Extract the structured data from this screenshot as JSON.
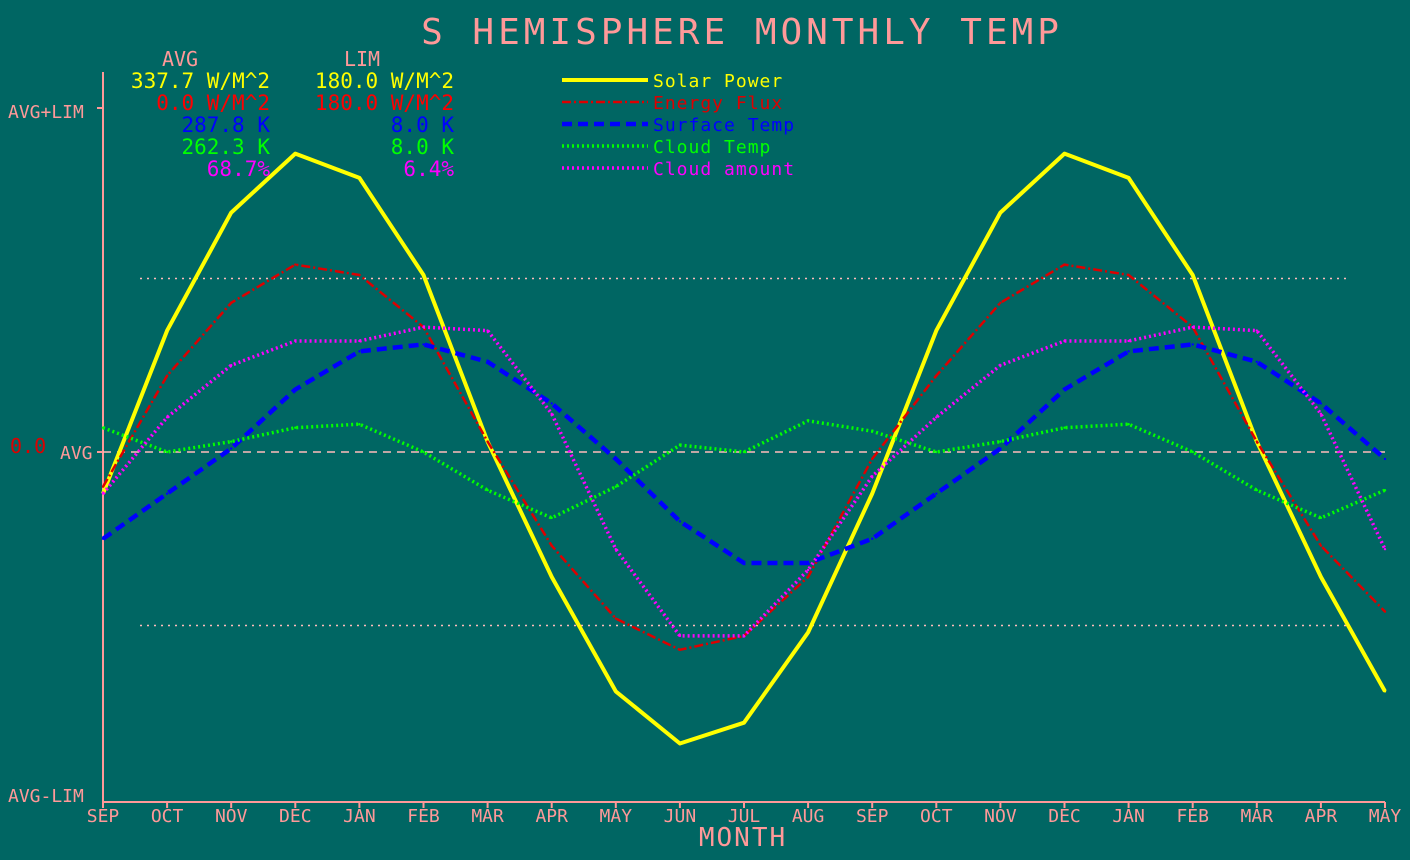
{
  "title": "S HEMISPHERE MONTHLY TEMP",
  "xlabel": "MONTH",
  "header": {
    "avg": "AVG",
    "lim": "LIM"
  },
  "stats": [
    {
      "avg": "337.7 W/M^2",
      "lim": "180.0 W/M^2",
      "color": "#ffff00"
    },
    {
      "avg": "0.0 W/M^2",
      "lim": "180.0 W/M^2",
      "color": "#ff0000"
    },
    {
      "avg": "287.8 K",
      "lim": "8.0 K",
      "color": "#0000ff"
    },
    {
      "avg": "262.3 K",
      "lim": "8.0 K",
      "color": "#00ff00"
    },
    {
      "avg": "68.7%",
      "lim": "6.4%",
      "color": "#ff00ff"
    }
  ],
  "ylabels": {
    "top": "AVG+LIM",
    "mid": "AVG",
    "bottom": "AVG-LIM",
    "zero": "0.0"
  },
  "chart_data": {
    "type": "line",
    "title": "S HEMISPHERE MONTHLY TEMP",
    "xlabel": "MONTH",
    "ylabel": "",
    "ylim": [
      -1,
      1
    ],
    "categories": [
      "SEP",
      "OCT",
      "NOV",
      "DEC",
      "JAN",
      "FEB",
      "MAR",
      "APR",
      "MAY",
      "JUN",
      "JUL",
      "AUG",
      "SEP",
      "OCT",
      "NOV",
      "DEC",
      "JAN",
      "FEB",
      "MAR",
      "APR",
      "MAY"
    ],
    "reference_lines": [
      0.5,
      -0.5
    ],
    "series": [
      {
        "name": "Solar Power",
        "color": "#ffff00",
        "style": "solid",
        "values": [
          -0.12,
          0.35,
          0.69,
          0.86,
          0.79,
          0.51,
          0.03,
          -0.36,
          -0.69,
          -0.84,
          -0.78,
          -0.52,
          -0.12,
          0.35,
          0.69,
          0.86,
          0.79,
          0.51,
          0.03,
          -0.36,
          -0.69
        ]
      },
      {
        "name": "Energy Flux",
        "color": "#dd0000",
        "style": "dashdot",
        "values": [
          -0.1,
          0.22,
          0.43,
          0.54,
          0.51,
          0.36,
          0.03,
          -0.27,
          -0.48,
          -0.57,
          -0.53,
          -0.36,
          -0.02,
          0.22,
          0.43,
          0.54,
          0.51,
          0.36,
          0.03,
          -0.27,
          -0.46
        ]
      },
      {
        "name": "Surface Temp",
        "color": "#0000ff",
        "style": "dashed",
        "values": [
          -0.25,
          -0.12,
          0.01,
          0.18,
          0.29,
          0.31,
          0.26,
          0.14,
          -0.02,
          -0.2,
          -0.32,
          -0.32,
          -0.25,
          -0.12,
          0.01,
          0.18,
          0.29,
          0.31,
          0.26,
          0.14,
          -0.02
        ]
      },
      {
        "name": "Cloud Temp",
        "color": "#00ff00",
        "style": "dotted",
        "values": [
          0.07,
          0.0,
          0.03,
          0.07,
          0.08,
          0.0,
          -0.11,
          -0.19,
          -0.1,
          0.02,
          0.0,
          0.09,
          0.06,
          0.0,
          0.03,
          0.07,
          0.08,
          0.0,
          -0.11,
          -0.19,
          -0.11
        ]
      },
      {
        "name": "Cloud amount",
        "color": "#ff00ff",
        "style": "dotted",
        "values": [
          -0.12,
          0.1,
          0.25,
          0.32,
          0.32,
          0.36,
          0.35,
          0.11,
          -0.28,
          -0.53,
          -0.53,
          -0.34,
          -0.07,
          0.1,
          0.25,
          0.32,
          0.32,
          0.36,
          0.35,
          0.11,
          -0.28
        ]
      }
    ]
  }
}
